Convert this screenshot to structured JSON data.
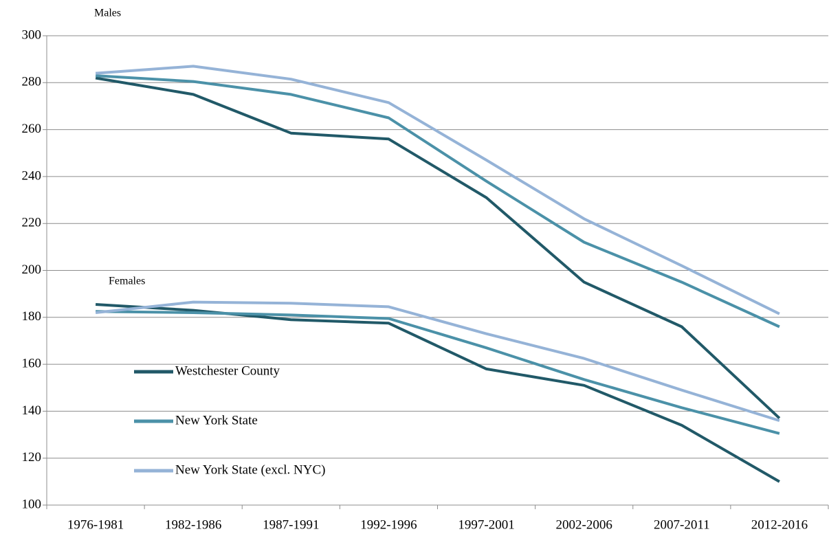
{
  "chart_data": {
    "type": "line",
    "group_labels": [
      "Males",
      "Females"
    ],
    "categories": [
      "1976-1981",
      "1982-1986",
      "1987-1991",
      "1992-1996",
      "1997-2001",
      "2002-2006",
      "2007-2011",
      "2012-2016"
    ],
    "series": [
      {
        "name": "Westchester County",
        "color": "#215968",
        "males": [
          282,
          275,
          258.5,
          256,
          231,
          195,
          176,
          137
        ],
        "females": [
          185.5,
          183,
          179,
          177.5,
          158,
          151,
          134,
          110
        ]
      },
      {
        "name": "New York State",
        "color": "#4b91a8",
        "males": [
          283,
          280.5,
          275,
          265,
          238,
          212,
          195,
          176
        ],
        "females": [
          182.5,
          182,
          181,
          179.5,
          167,
          153.5,
          141.5,
          130.5
        ]
      },
      {
        "name": "New York State (excl. NYC)",
        "color": "#95b3d7",
        "males": [
          284,
          287,
          281.5,
          271.5,
          247,
          222,
          202,
          181.5
        ],
        "females": [
          182,
          186.5,
          186,
          184.5,
          173,
          162.5,
          149,
          136
        ]
      }
    ],
    "ylim": [
      100,
      300
    ],
    "yticks": [
      100,
      120,
      140,
      160,
      180,
      200,
      220,
      240,
      260,
      280,
      300
    ],
    "grid": true
  }
}
